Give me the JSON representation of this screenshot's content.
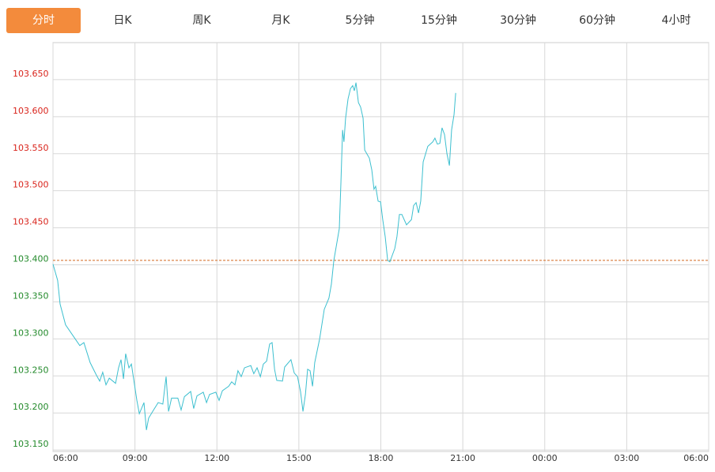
{
  "tabs": [
    "分时",
    "日K",
    "周K",
    "月K",
    "5分钟",
    "15分钟",
    "30分钟",
    "60分钟",
    "4小时"
  ],
  "active_tab": 0,
  "chart_data": {
    "type": "line",
    "x": [
      0.0,
      0.17,
      0.26,
      0.46,
      0.72,
      0.98,
      1.13,
      1.36,
      1.59,
      1.71,
      1.82,
      1.94,
      2.06,
      2.29,
      2.4,
      2.49,
      2.58,
      2.66,
      2.78,
      2.87,
      2.98,
      3.07,
      3.16,
      3.33,
      3.42,
      3.5,
      3.68,
      3.85,
      4.02,
      4.14,
      4.23,
      4.34,
      4.57,
      4.69,
      4.81,
      5.04,
      5.15,
      5.27,
      5.5,
      5.62,
      5.73,
      5.96,
      6.08,
      6.2,
      6.43,
      6.54,
      6.66,
      6.77,
      6.89,
      7.01,
      7.24,
      7.35,
      7.47,
      7.59,
      7.7,
      7.82,
      7.93,
      8.02,
      8.11,
      8.19,
      8.4,
      8.48,
      8.71,
      8.83,
      8.95,
      9.06,
      9.15,
      9.24,
      9.32,
      9.41,
      9.5,
      9.58,
      9.76,
      9.93,
      10.1,
      10.19,
      10.28,
      10.48,
      10.54,
      10.6,
      10.65,
      10.71,
      10.8,
      10.89,
      10.97,
      11.03,
      11.09,
      11.18,
      11.26,
      11.35,
      11.41,
      11.58,
      11.67,
      11.75,
      11.81,
      11.9,
      11.99,
      12.07,
      12.16,
      12.25,
      12.33,
      12.51,
      12.59,
      12.68,
      12.77,
      12.94,
      13.12,
      13.2,
      13.29,
      13.38,
      13.46,
      13.55,
      13.72,
      13.9,
      13.98,
      14.07,
      14.16,
      14.24,
      14.33,
      14.42,
      14.51,
      14.59,
      14.68,
      14.74
    ],
    "series": [
      {
        "color": "#3cbfcf",
        "values": [
          103.401,
          103.379,
          103.347,
          103.319,
          103.305,
          103.291,
          103.295,
          103.268,
          103.251,
          103.243,
          103.255,
          103.238,
          103.247,
          103.24,
          103.261,
          103.272,
          103.246,
          103.28,
          103.261,
          103.266,
          103.239,
          103.217,
          103.199,
          103.214,
          103.177,
          103.193,
          103.204,
          103.214,
          103.212,
          103.249,
          103.202,
          103.22,
          103.22,
          103.204,
          103.222,
          103.229,
          103.206,
          103.223,
          103.228,
          103.214,
          103.225,
          103.228,
          103.217,
          103.23,
          103.236,
          103.242,
          103.238,
          103.257,
          103.249,
          103.261,
          103.264,
          103.253,
          103.261,
          103.249,
          103.266,
          103.27,
          103.293,
          103.295,
          103.259,
          103.244,
          103.243,
          103.262,
          103.272,
          103.254,
          103.249,
          103.229,
          103.202,
          103.225,
          103.259,
          103.257,
          103.236,
          103.268,
          103.3,
          103.34,
          103.355,
          103.374,
          103.406,
          103.449,
          103.512,
          103.582,
          103.566,
          103.598,
          103.624,
          103.638,
          103.642,
          103.635,
          103.646,
          103.619,
          103.613,
          103.598,
          103.555,
          103.544,
          103.528,
          103.502,
          103.506,
          103.486,
          103.485,
          103.461,
          103.438,
          103.406,
          103.404,
          103.422,
          103.438,
          103.468,
          103.468,
          103.454,
          103.461,
          103.48,
          103.484,
          103.47,
          103.486,
          103.539,
          103.56,
          103.566,
          103.571,
          103.563,
          103.564,
          103.585,
          103.576,
          103.55,
          103.534,
          103.582,
          103.603,
          103.632
        ]
      }
    ],
    "xlim": [
      0,
      24
    ],
    "xticks": [
      {
        "value": 0,
        "label": "06:00"
      },
      {
        "value": 3,
        "label": "09:00"
      },
      {
        "value": 6,
        "label": "12:00"
      },
      {
        "value": 9,
        "label": "15:00"
      },
      {
        "value": 12,
        "label": "18:00"
      },
      {
        "value": 15,
        "label": "21:00"
      },
      {
        "value": 18,
        "label": "00:00"
      },
      {
        "value": 21,
        "label": "03:00"
      },
      {
        "value": 24,
        "label": "06:00"
      }
    ],
    "ylim": [
      103.148,
      103.7
    ],
    "yticks": [
      {
        "value": 103.15,
        "label": "103.150"
      },
      {
        "value": 103.2,
        "label": "103.200"
      },
      {
        "value": 103.25,
        "label": "103.250"
      },
      {
        "value": 103.3,
        "label": "103.300"
      },
      {
        "value": 103.35,
        "label": "103.350"
      },
      {
        "value": 103.4,
        "label": "103.400"
      },
      {
        "value": 103.45,
        "label": "103.450"
      },
      {
        "value": 103.5,
        "label": "103.500"
      },
      {
        "value": 103.55,
        "label": "103.550"
      },
      {
        "value": 103.6,
        "label": "103.600"
      },
      {
        "value": 103.65,
        "label": "103.650"
      }
    ],
    "reference_line": {
      "value": 103.406,
      "color": "#d2691e"
    },
    "up_color": "#d9241c",
    "down_color": "#238a2b",
    "grid": true
  }
}
